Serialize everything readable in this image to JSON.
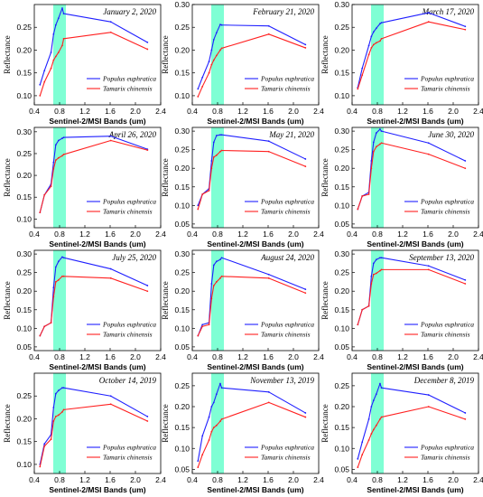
{
  "colors": {
    "band_highlight": "#7fffd4",
    "Populus euphratica": "#1f1fff",
    "Tamarix chinensis": "#ff2020"
  },
  "chart_data": [
    {
      "type": "line",
      "title": "January 2, 2020",
      "xlabel": "Sentinel-2/MSI Bands (um)",
      "ylabel": "Reflectance",
      "xlim": [
        0.4,
        2.4
      ],
      "ylim": [
        0.08,
        0.3
      ],
      "xticks": [
        0.4,
        0.8,
        1.2,
        1.6,
        2.0,
        2.4
      ],
      "yticks": [
        0.1,
        0.15,
        0.2,
        0.25
      ],
      "highlight_band": [
        0.7,
        0.9
      ],
      "legend_position": "bottom-right",
      "series": [
        {
          "name": "Populus euphratica",
          "color": "blue",
          "x": [
            0.49,
            0.56,
            0.665,
            0.705,
            0.74,
            0.783,
            0.842,
            0.865,
            1.61,
            2.19
          ],
          "y": [
            0.124,
            0.155,
            0.195,
            0.235,
            0.255,
            0.27,
            0.292,
            0.28,
            0.262,
            0.217
          ]
        },
        {
          "name": "Tamarix chinensis",
          "color": "red",
          "x": [
            0.49,
            0.56,
            0.665,
            0.705,
            0.74,
            0.783,
            0.842,
            0.865,
            1.61,
            2.19
          ],
          "y": [
            0.1,
            0.13,
            0.16,
            0.178,
            0.186,
            0.195,
            0.21,
            0.225,
            0.239,
            0.202
          ]
        }
      ]
    },
    {
      "type": "line",
      "title": "February 21, 2020",
      "xlabel": "Sentinel-2/MSI Bands (um)",
      "ylabel": "Reflectance",
      "xlim": [
        0.4,
        2.4
      ],
      "ylim": [
        0.08,
        0.3
      ],
      "xticks": [
        0.4,
        0.8,
        1.2,
        1.6,
        2.0,
        2.4
      ],
      "yticks": [
        0.1,
        0.15,
        0.2,
        0.25,
        0.3
      ],
      "highlight_band": [
        0.7,
        0.9
      ],
      "legend_position": "bottom-right",
      "series": [
        {
          "name": "Populus euphratica",
          "color": "blue",
          "x": [
            0.49,
            0.56,
            0.665,
            0.705,
            0.74,
            0.783,
            0.842,
            0.865,
            1.61,
            2.19
          ],
          "y": [
            0.115,
            0.14,
            0.175,
            0.2,
            0.223,
            0.238,
            0.256,
            0.255,
            0.253,
            0.212
          ]
        },
        {
          "name": "Tamarix chinensis",
          "color": "red",
          "x": [
            0.49,
            0.56,
            0.665,
            0.705,
            0.74,
            0.783,
            0.842,
            0.865,
            1.61,
            2.19
          ],
          "y": [
            0.098,
            0.12,
            0.15,
            0.168,
            0.178,
            0.188,
            0.2,
            0.204,
            0.235,
            0.205
          ]
        }
      ]
    },
    {
      "type": "line",
      "title": "March 17, 2020",
      "xlabel": "Sentinel-2/MSI Bands (um)",
      "ylabel": "Reflectance",
      "xlim": [
        0.4,
        2.4
      ],
      "ylim": [
        0.08,
        0.3
      ],
      "xticks": [
        0.4,
        0.8,
        1.2,
        1.6,
        2.0,
        2.4
      ],
      "yticks": [
        0.1,
        0.15,
        0.2,
        0.25,
        0.3
      ],
      "highlight_band": [
        0.7,
        0.9
      ],
      "legend_position": "bottom-right",
      "series": [
        {
          "name": "Populus euphratica",
          "color": "blue",
          "x": [
            0.49,
            0.56,
            0.665,
            0.705,
            0.74,
            0.783,
            0.842,
            0.865,
            1.61,
            2.19
          ],
          "y": [
            0.118,
            0.16,
            0.21,
            0.23,
            0.24,
            0.248,
            0.258,
            0.26,
            0.282,
            0.252
          ]
        },
        {
          "name": "Tamarix chinensis",
          "color": "red",
          "x": [
            0.49,
            0.56,
            0.665,
            0.705,
            0.74,
            0.783,
            0.842,
            0.865,
            1.61,
            2.19
          ],
          "y": [
            0.115,
            0.145,
            0.19,
            0.205,
            0.212,
            0.216,
            0.22,
            0.225,
            0.262,
            0.245
          ]
        }
      ]
    },
    {
      "type": "line",
      "title": "April 26, 2020",
      "xlabel": "Sentinel-2/MSI Bands (um)",
      "ylabel": "Reflectance",
      "xlim": [
        0.4,
        2.4
      ],
      "ylim": [
        0.08,
        0.31
      ],
      "xticks": [
        0.4,
        0.8,
        1.2,
        1.6,
        2.0,
        2.4
      ],
      "yticks": [
        0.1,
        0.15,
        0.2,
        0.25,
        0.3
      ],
      "highlight_band": [
        0.7,
        0.9
      ],
      "legend_position": "bottom-right",
      "series": [
        {
          "name": "Populus euphratica",
          "color": "blue",
          "x": [
            0.49,
            0.56,
            0.665,
            0.705,
            0.74,
            0.783,
            0.842,
            0.865,
            1.61,
            2.19
          ],
          "y": [
            0.115,
            0.155,
            0.18,
            0.23,
            0.27,
            0.28,
            0.285,
            0.287,
            0.29,
            0.26
          ]
        },
        {
          "name": "Tamarix chinensis",
          "color": "red",
          "x": [
            0.49,
            0.56,
            0.665,
            0.705,
            0.74,
            0.783,
            0.842,
            0.865,
            1.61,
            2.19
          ],
          "y": [
            0.115,
            0.155,
            0.175,
            0.215,
            0.235,
            0.24,
            0.245,
            0.248,
            0.28,
            0.258
          ]
        }
      ]
    },
    {
      "type": "line",
      "title": "May 21, 2020",
      "xlabel": "Sentinel-2/MSI Bands (um)",
      "ylabel": "Reflectance",
      "xlim": [
        0.4,
        2.4
      ],
      "ylim": [
        0.04,
        0.31
      ],
      "xticks": [
        0.4,
        0.8,
        1.2,
        1.6,
        2.0,
        2.4
      ],
      "yticks": [
        0.05,
        0.1,
        0.15,
        0.2,
        0.25,
        0.3
      ],
      "highlight_band": [
        0.7,
        0.9
      ],
      "legend_position": "bottom-right",
      "series": [
        {
          "name": "Populus euphratica",
          "color": "blue",
          "x": [
            0.49,
            0.56,
            0.665,
            0.705,
            0.74,
            0.783,
            0.842,
            0.865,
            1.61,
            2.19
          ],
          "y": [
            0.1,
            0.13,
            0.145,
            0.22,
            0.27,
            0.288,
            0.29,
            0.29,
            0.273,
            0.225
          ]
        },
        {
          "name": "Tamarix chinensis",
          "color": "red",
          "x": [
            0.49,
            0.56,
            0.665,
            0.705,
            0.74,
            0.783,
            0.842,
            0.865,
            1.61,
            2.19
          ],
          "y": [
            0.09,
            0.13,
            0.14,
            0.2,
            0.23,
            0.235,
            0.245,
            0.248,
            0.245,
            0.205
          ]
        }
      ]
    },
    {
      "type": "line",
      "title": "June 30, 2020",
      "xlabel": "Sentinel-2/MSI Bands (um)",
      "ylabel": "Reflectance",
      "xlim": [
        0.4,
        2.4
      ],
      "ylim": [
        0.04,
        0.31
      ],
      "xticks": [
        0.4,
        0.8,
        1.2,
        1.6,
        2.0,
        2.4
      ],
      "yticks": [
        0.05,
        0.1,
        0.15,
        0.2,
        0.25,
        0.3
      ],
      "highlight_band": [
        0.7,
        0.9
      ],
      "legend_position": "bottom-right",
      "series": [
        {
          "name": "Populus euphratica",
          "color": "blue",
          "x": [
            0.49,
            0.56,
            0.665,
            0.705,
            0.74,
            0.783,
            0.842,
            0.865,
            1.61,
            2.19
          ],
          "y": [
            0.09,
            0.125,
            0.135,
            0.22,
            0.27,
            0.295,
            0.305,
            0.3,
            0.268,
            0.22
          ]
        },
        {
          "name": "Tamarix chinensis",
          "color": "red",
          "x": [
            0.49,
            0.56,
            0.665,
            0.705,
            0.74,
            0.783,
            0.842,
            0.865,
            1.61,
            2.19
          ],
          "y": [
            0.09,
            0.125,
            0.13,
            0.2,
            0.245,
            0.258,
            0.265,
            0.268,
            0.238,
            0.2
          ]
        }
      ]
    },
    {
      "type": "line",
      "title": "July 25, 2020",
      "xlabel": "Sentinel-2/MSI Bands (um)",
      "ylabel": "Reflectance",
      "xlim": [
        0.4,
        2.4
      ],
      "ylim": [
        0.04,
        0.31
      ],
      "xticks": [
        0.4,
        0.8,
        1.2,
        1.6,
        2.0,
        2.4
      ],
      "yticks": [
        0.05,
        0.1,
        0.15,
        0.2,
        0.25,
        0.3
      ],
      "highlight_band": [
        0.7,
        0.9
      ],
      "legend_position": "bottom-right",
      "series": [
        {
          "name": "Populus euphratica",
          "color": "blue",
          "x": [
            0.49,
            0.56,
            0.665,
            0.705,
            0.74,
            0.783,
            0.842,
            0.865,
            1.61,
            2.19
          ],
          "y": [
            0.08,
            0.105,
            0.115,
            0.21,
            0.265,
            0.28,
            0.292,
            0.29,
            0.26,
            0.215
          ]
        },
        {
          "name": "Tamarix chinensis",
          "color": "red",
          "x": [
            0.49,
            0.56,
            0.665,
            0.705,
            0.74,
            0.783,
            0.842,
            0.865,
            1.61,
            2.19
          ],
          "y": [
            0.08,
            0.105,
            0.115,
            0.185,
            0.225,
            0.23,
            0.24,
            0.24,
            0.235,
            0.2
          ]
        }
      ]
    },
    {
      "type": "line",
      "title": "August 24, 2020",
      "xlabel": "Sentinel-2/MSI Bands (um)",
      "ylabel": "Reflectance",
      "xlim": [
        0.4,
        2.4
      ],
      "ylim": [
        0.04,
        0.31
      ],
      "xticks": [
        0.4,
        0.8,
        1.2,
        1.6,
        2.0,
        2.4
      ],
      "yticks": [
        0.05,
        0.1,
        0.15,
        0.2,
        0.25,
        0.3
      ],
      "highlight_band": [
        0.7,
        0.9
      ],
      "legend_position": "bottom-right",
      "series": [
        {
          "name": "Populus euphratica",
          "color": "blue",
          "x": [
            0.49,
            0.56,
            0.665,
            0.705,
            0.74,
            0.783,
            0.842,
            0.865,
            1.61,
            2.19
          ],
          "y": [
            0.08,
            0.11,
            0.115,
            0.22,
            0.27,
            0.28,
            0.285,
            0.29,
            0.245,
            0.205
          ]
        },
        {
          "name": "Tamarix chinensis",
          "color": "red",
          "x": [
            0.49,
            0.56,
            0.665,
            0.705,
            0.74,
            0.783,
            0.842,
            0.865,
            1.61,
            2.19
          ],
          "y": [
            0.08,
            0.105,
            0.11,
            0.18,
            0.215,
            0.225,
            0.235,
            0.24,
            0.235,
            0.195
          ]
        }
      ]
    },
    {
      "type": "line",
      "title": "September 13, 2020",
      "xlabel": "Sentinel-2/MSI Bands (um)",
      "ylabel": "Reflectance",
      "xlim": [
        0.4,
        2.4
      ],
      "ylim": [
        0.04,
        0.31
      ],
      "xticks": [
        0.4,
        0.8,
        1.2,
        1.6,
        2.0,
        2.4
      ],
      "yticks": [
        0.05,
        0.1,
        0.15,
        0.2,
        0.25,
        0.3
      ],
      "highlight_band": [
        0.7,
        0.9
      ],
      "legend_position": "bottom-right",
      "series": [
        {
          "name": "Populus euphratica",
          "color": "blue",
          "x": [
            0.49,
            0.56,
            0.665,
            0.705,
            0.74,
            0.783,
            0.842,
            0.865,
            1.61,
            2.19
          ],
          "y": [
            0.11,
            0.15,
            0.16,
            0.24,
            0.275,
            0.285,
            0.29,
            0.29,
            0.268,
            0.23
          ]
        },
        {
          "name": "Tamarix chinensis",
          "color": "red",
          "x": [
            0.49,
            0.56,
            0.665,
            0.705,
            0.74,
            0.783,
            0.842,
            0.865,
            1.61,
            2.19
          ],
          "y": [
            0.11,
            0.15,
            0.16,
            0.22,
            0.245,
            0.248,
            0.255,
            0.258,
            0.258,
            0.22
          ]
        }
      ]
    },
    {
      "type": "line",
      "title": "October 14, 2019",
      "xlabel": "Sentinel-2/MSI Bands (um)",
      "ylabel": "Reflectance",
      "xlim": [
        0.4,
        2.4
      ],
      "ylim": [
        0.08,
        0.3
      ],
      "xticks": [
        0.4,
        0.8,
        1.2,
        1.6,
        2.0,
        2.4
      ],
      "yticks": [
        0.1,
        0.15,
        0.2,
        0.25
      ],
      "highlight_band": [
        0.7,
        0.9
      ],
      "legend_position": "bottom-right",
      "series": [
        {
          "name": "Populus euphratica",
          "color": "blue",
          "x": [
            0.49,
            0.56,
            0.665,
            0.705,
            0.74,
            0.783,
            0.842,
            0.865,
            1.61,
            2.19
          ],
          "y": [
            0.1,
            0.145,
            0.165,
            0.225,
            0.255,
            0.262,
            0.268,
            0.268,
            0.25,
            0.205
          ]
        },
        {
          "name": "Tamarix chinensis",
          "color": "red",
          "x": [
            0.49,
            0.56,
            0.665,
            0.705,
            0.74,
            0.783,
            0.842,
            0.865,
            1.61,
            2.19
          ],
          "y": [
            0.095,
            0.14,
            0.155,
            0.195,
            0.205,
            0.208,
            0.215,
            0.22,
            0.232,
            0.195
          ]
        }
      ]
    },
    {
      "type": "line",
      "title": "November 13, 2019",
      "xlabel": "Sentinel-2/MSI Bands (um)",
      "ylabel": "Reflectance",
      "xlim": [
        0.4,
        2.4
      ],
      "ylim": [
        0.04,
        0.28
      ],
      "xticks": [
        0.4,
        0.8,
        1.2,
        1.6,
        2.0,
        2.4
      ],
      "yticks": [
        0.05,
        0.1,
        0.15,
        0.2,
        0.25
      ],
      "highlight_band": [
        0.7,
        0.9
      ],
      "legend_position": "bottom-right",
      "series": [
        {
          "name": "Populus euphratica",
          "color": "blue",
          "x": [
            0.49,
            0.56,
            0.665,
            0.705,
            0.74,
            0.783,
            0.842,
            0.865,
            1.61,
            2.19
          ],
          "y": [
            0.07,
            0.13,
            0.175,
            0.2,
            0.21,
            0.23,
            0.255,
            0.245,
            0.235,
            0.185
          ]
        },
        {
          "name": "Tamarix chinensis",
          "color": "red",
          "x": [
            0.49,
            0.56,
            0.665,
            0.705,
            0.74,
            0.783,
            0.842,
            0.865,
            1.61,
            2.19
          ],
          "y": [
            0.055,
            0.085,
            0.12,
            0.14,
            0.15,
            0.155,
            0.165,
            0.17,
            0.21,
            0.175
          ]
        }
      ]
    },
    {
      "type": "line",
      "title": "December 8, 2019",
      "xlabel": "Sentinel-2/MSI Bands (um)",
      "ylabel": "Reflectance",
      "xlim": [
        0.4,
        2.4
      ],
      "ylim": [
        0.04,
        0.28
      ],
      "xticks": [
        0.4,
        0.8,
        1.2,
        1.6,
        2.0,
        2.4
      ],
      "yticks": [
        0.05,
        0.1,
        0.15,
        0.2,
        0.25
      ],
      "highlight_band": [
        0.7,
        0.9
      ],
      "legend_position": "bottom-right",
      "series": [
        {
          "name": "Populus euphratica",
          "color": "blue",
          "x": [
            0.49,
            0.56,
            0.665,
            0.705,
            0.74,
            0.783,
            0.842,
            0.865,
            1.61,
            2.19
          ],
          "y": [
            0.075,
            0.115,
            0.17,
            0.2,
            0.215,
            0.23,
            0.255,
            0.245,
            0.228,
            0.185
          ]
        },
        {
          "name": "Tamarix chinensis",
          "color": "red",
          "x": [
            0.49,
            0.56,
            0.665,
            0.705,
            0.74,
            0.783,
            0.842,
            0.865,
            1.61,
            2.19
          ],
          "y": [
            0.055,
            0.085,
            0.12,
            0.135,
            0.145,
            0.155,
            0.17,
            0.175,
            0.2,
            0.17
          ]
        }
      ]
    }
  ]
}
